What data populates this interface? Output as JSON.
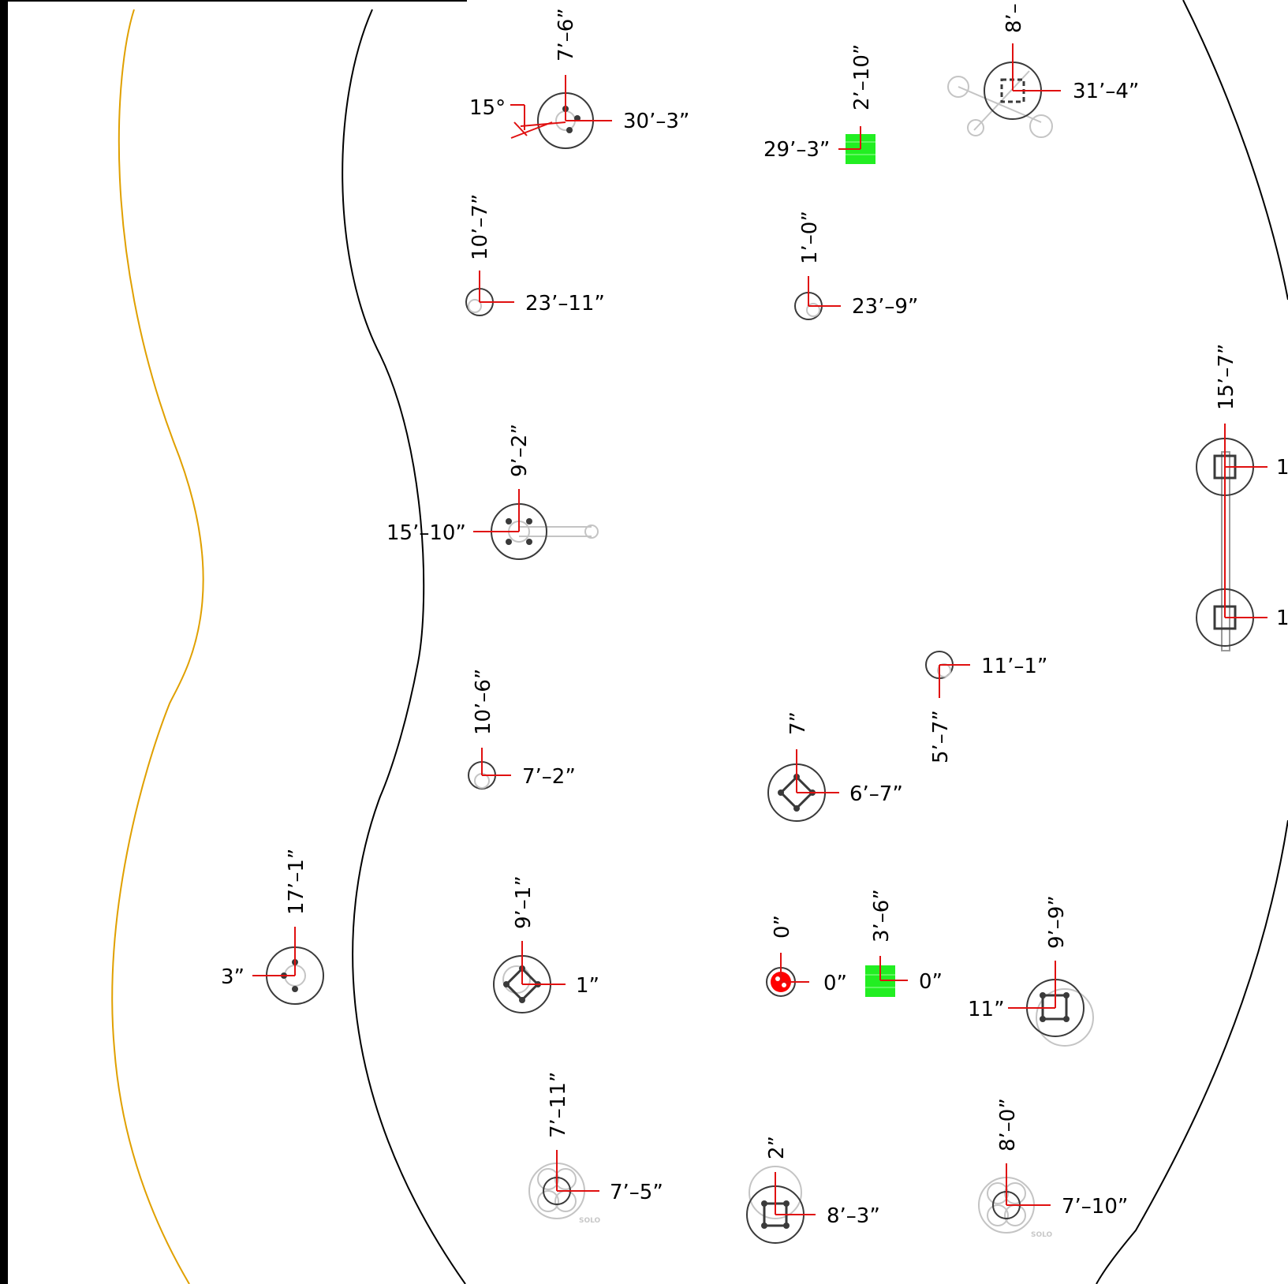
{
  "colors": {
    "dimension_line": "#e01010",
    "path_edge": "#000000",
    "property_line": "#e0a000",
    "footing_ring": "#3a3a3a",
    "faint_equipment": "#c4c4c4",
    "green_fixture": "#22ee22",
    "red_marker": "#ff0000"
  },
  "dimensions": {
    "d01": "7’–6”",
    "d02": "30’–3”",
    "d03": "15°",
    "d04": "2’–10”",
    "d05": "29’–3”",
    "d06": "8’–",
    "d07": "31’–4”",
    "d08": "10’–7”",
    "d09": "23’–11”",
    "d10": "1’–0”",
    "d11": "23’–9”",
    "d12": "15’–7”",
    "d13": "1",
    "d14": "1",
    "d15": "9’–2”",
    "d16": "15’–10”",
    "d17": "11’–1”",
    "d18": "5’–7”",
    "d19": "10’–6”",
    "d20": "7’–2”",
    "d21": "7”",
    "d22": "6’–7”",
    "d23": "17’–1”",
    "d24": "3”",
    "d25": "9’–1”",
    "d26": "1”",
    "d27": "0”",
    "d28": "0”",
    "d29": "3’–6”",
    "d30": "0”",
    "d31": "9’–9”",
    "d32": "11”",
    "d33": "7’–11”",
    "d34": "7’–5”",
    "d35": "2”",
    "d36": "8’–3”",
    "d37": "8’–0”",
    "d38": "7’–10”"
  },
  "labels": {
    "solo_a": "SOLO",
    "solo_b": "SOLO"
  },
  "icons": {
    "footing": "footing-ring-icon",
    "anchor": "anchor-bolt-icon",
    "fixture": "green-fixture-icon",
    "origin": "origin-marker-icon"
  }
}
